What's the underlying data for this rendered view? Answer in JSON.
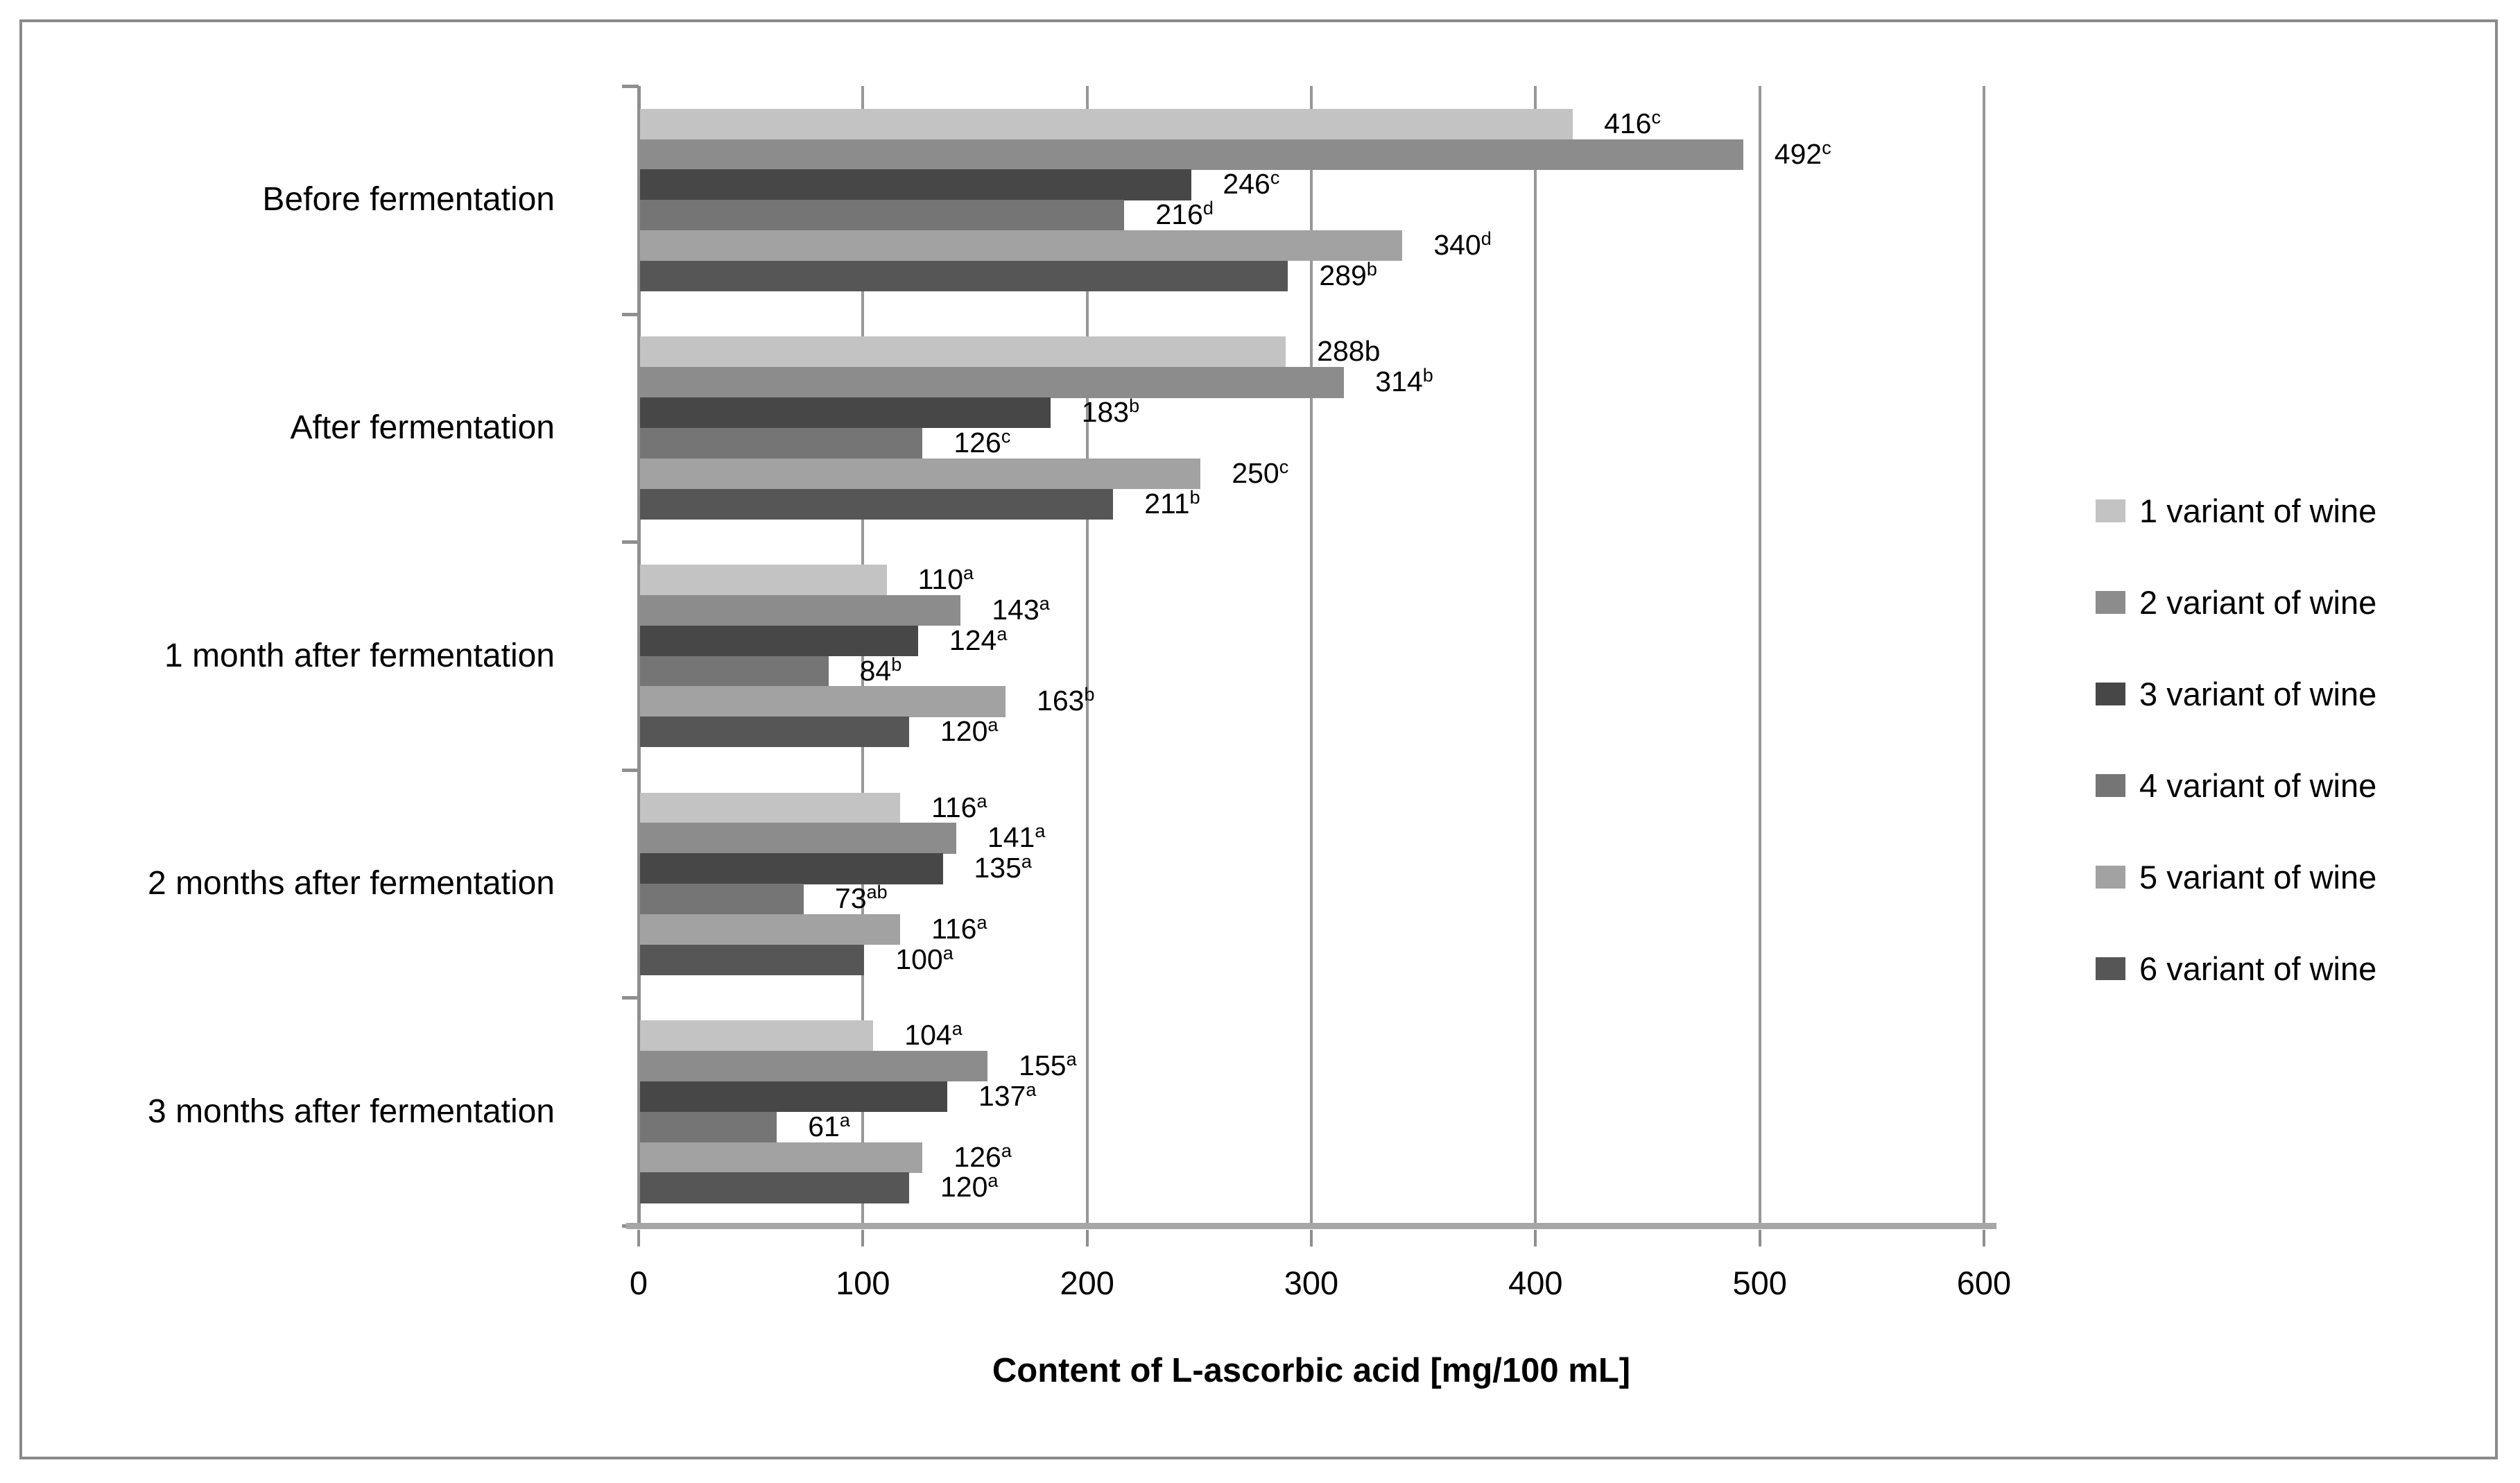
{
  "figure": {
    "border_color": "#8a8a8a",
    "background": "#ffffff",
    "text_color": "#000000",
    "gridline_color": "#979797",
    "axis_line_color": "#a6a6a6"
  },
  "chart_data": {
    "type": "bar",
    "orientation": "horizontal",
    "title": "",
    "xlabel": "Content of L-ascorbic acid [mg/100 mL]",
    "ylabel": "",
    "xlim": [
      0,
      600
    ],
    "xticks": [
      "0",
      "100",
      "200",
      "300",
      "400",
      "500",
      "600"
    ],
    "grid": true,
    "legend_position": "right",
    "categories": [
      "Before fermentation",
      "After fermentation",
      "1 month after fermentation",
      "2 months after fermentation",
      "3 months after fermentation"
    ],
    "series": [
      {
        "name": "1 variant of wine",
        "color": "#c3c3c3",
        "values": [
          416,
          288,
          110,
          116,
          104
        ],
        "point_labels": [
          {
            "text": "416",
            "sup": "c"
          },
          {
            "text": "288b",
            "sup": ""
          },
          {
            "text": "110",
            "sup": "a"
          },
          {
            "text": "116",
            "sup": "a"
          },
          {
            "text": "104",
            "sup": "a"
          }
        ]
      },
      {
        "name": "2 variant of wine",
        "color": "#8c8c8c",
        "values": [
          492,
          314,
          143,
          141,
          155
        ],
        "point_labels": [
          {
            "text": "492",
            "sup": "c"
          },
          {
            "text": "314",
            "sup": "b"
          },
          {
            "text": "143",
            "sup": "a"
          },
          {
            "text": "141",
            "sup": "a"
          },
          {
            "text": "155",
            "sup": "a"
          }
        ]
      },
      {
        "name": "3 variant of wine",
        "color": "#474747",
        "values": [
          246,
          183,
          124,
          135,
          137
        ],
        "point_labels": [
          {
            "text": "246",
            "sup": "c"
          },
          {
            "text": "183",
            "sup": "b"
          },
          {
            "text": "124",
            "sup": "a"
          },
          {
            "text": "135",
            "sup": "a"
          },
          {
            "text": "137",
            "sup": "a"
          }
        ]
      },
      {
        "name": "4 variant of wine",
        "color": "#757575",
        "values": [
          216,
          126,
          84,
          73,
          61
        ],
        "point_labels": [
          {
            "text": "216",
            "sup": "d"
          },
          {
            "text": "126",
            "sup": "c"
          },
          {
            "text": "84",
            "sup": "b"
          },
          {
            "text": "73",
            "sup": "ab"
          },
          {
            "text": "61",
            "sup": "a"
          }
        ]
      },
      {
        "name": "5 variant of wine",
        "color": "#a2a2a2",
        "values": [
          340,
          250,
          163,
          116,
          126
        ],
        "point_labels": [
          {
            "text": "340",
            "sup": "d"
          },
          {
            "text": "250",
            "sup": "c"
          },
          {
            "text": "163",
            "sup": "b"
          },
          {
            "text": "116",
            "sup": "a"
          },
          {
            "text": "126",
            "sup": "a"
          }
        ]
      },
      {
        "name": "6 variant of wine",
        "color": "#565656",
        "values": [
          289,
          211,
          120,
          100,
          120
        ],
        "point_labels": [
          {
            "text": "289",
            "sup": "b"
          },
          {
            "text": "211",
            "sup": "b"
          },
          {
            "text": "120",
            "sup": "a"
          },
          {
            "text": "100",
            "sup": "a"
          },
          {
            "text": "120",
            "sup": "a"
          }
        ]
      }
    ]
  }
}
